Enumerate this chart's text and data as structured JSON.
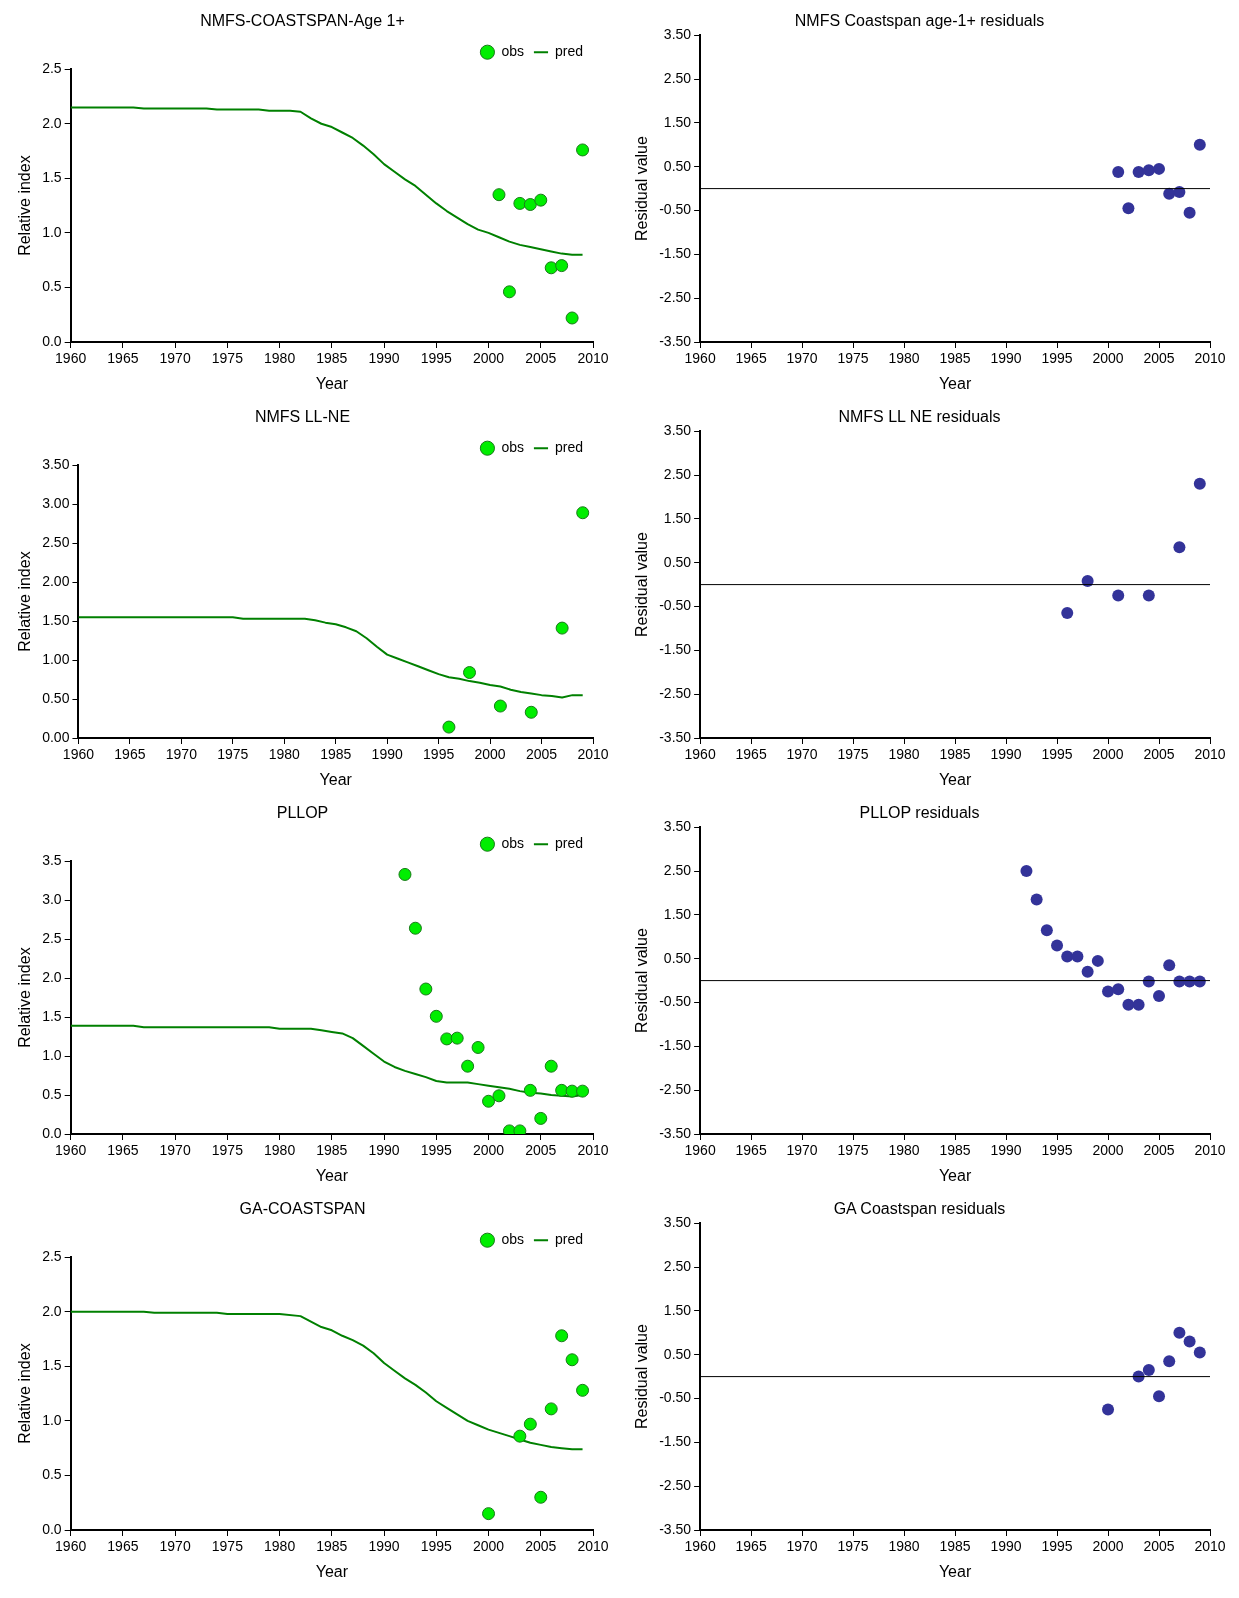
{
  "chart_data": [
    {
      "type": "line",
      "title": "NMFS-COASTSPAN-Age 1+",
      "xlabel": "Year",
      "ylabel": "Relative index",
      "legend": "top right",
      "marker": "circle",
      "line_style": "solid",
      "grid": false,
      "xlim": [
        1960,
        2010
      ],
      "xticks": [
        1960,
        1965,
        1970,
        1975,
        1980,
        1985,
        1990,
        1995,
        2000,
        2005,
        2010
      ],
      "ylim": [
        0,
        2.5
      ],
      "yticks": [
        {
          "value": 0,
          "label": "0.0"
        },
        {
          "value": 0.5,
          "label": "0.5"
        },
        {
          "value": 1,
          "label": "1.0"
        },
        {
          "value": 1.5,
          "label": "1.5"
        },
        {
          "value": 2,
          "label": "2.0"
        },
        {
          "value": 2.5,
          "label": "2.5"
        }
      ],
      "series": [
        {
          "name": "obs",
          "type": "scatter",
          "color": "#00ee00",
          "x": [
            2001,
            2002,
            2003,
            2004,
            2005,
            2006,
            2007,
            2008,
            2009
          ],
          "values": [
            1.35,
            0.46,
            1.27,
            1.26,
            1.3,
            0.68,
            0.7,
            0.22,
            1.76
          ]
        },
        {
          "name": "pred",
          "marker": "none",
          "color": "#008000",
          "x": [
            1960,
            1966,
            1967,
            1973,
            1974,
            1978,
            1979,
            1981,
            1982,
            1983,
            1984,
            1985,
            1986,
            1987,
            1988,
            1989,
            1990,
            1991,
            1992,
            1993,
            1994,
            1995,
            1996,
            1997,
            1998,
            1999,
            2000,
            2001,
            2002,
            2003,
            2004,
            2005,
            2006,
            2007,
            2008,
            2009
          ],
          "values": [
            2.15,
            2.15,
            2.14,
            2.14,
            2.13,
            2.13,
            2.12,
            2.12,
            2.11,
            2.05,
            2.0,
            1.97,
            1.92,
            1.87,
            1.8,
            1.72,
            1.63,
            1.56,
            1.49,
            1.43,
            1.35,
            1.27,
            1.2,
            1.14,
            1.08,
            1.03,
            1.0,
            0.96,
            0.92,
            0.89,
            0.87,
            0.85,
            0.83,
            0.81,
            0.8,
            0.8
          ]
        }
      ]
    },
    {
      "type": "scatter",
      "title": "NMFS Coastspan age-1+ residuals",
      "xlabel": "Year",
      "ylabel": "Residual value",
      "legend": false,
      "marker": "circle",
      "grid": false,
      "xlim": [
        1960,
        2010
      ],
      "xticks": [
        1960,
        1965,
        1970,
        1975,
        1980,
        1985,
        1990,
        1995,
        2000,
        2005,
        2010
      ],
      "ylim": [
        -3.5,
        3.5
      ],
      "yticks": [
        {
          "value": -3.5,
          "label": "-3.50"
        },
        {
          "value": -2.5,
          "label": "-2.50"
        },
        {
          "value": -1.5,
          "label": "-1.50"
        },
        {
          "value": -0.5,
          "label": "-0.50"
        },
        {
          "value": 0.5,
          "label": "0.50"
        },
        {
          "value": 1.5,
          "label": "1.50"
        },
        {
          "value": 2.5,
          "label": "2.50"
        },
        {
          "value": 3.5,
          "label": "3.50"
        }
      ],
      "ref_lines": [
        {
          "axis": "y",
          "value": 0,
          "color": "#000000"
        }
      ],
      "series": [
        {
          "color": "#333399",
          "x": [
            2001,
            2002,
            2003,
            2004,
            2005,
            2006,
            2007,
            2008,
            2009
          ],
          "values": [
            0.38,
            -0.45,
            0.38,
            0.42,
            0.45,
            -0.12,
            -0.08,
            -0.55,
            1.0
          ]
        }
      ]
    },
    {
      "type": "line",
      "title": "NMFS LL-NE",
      "xlabel": "Year",
      "ylabel": "Relative index",
      "legend": "top right",
      "marker": "circle",
      "line_style": "solid",
      "grid": false,
      "xlim": [
        1960,
        2010
      ],
      "xticks": [
        1960,
        1965,
        1970,
        1975,
        1980,
        1985,
        1990,
        1995,
        2000,
        2005,
        2010
      ],
      "ylim": [
        0,
        3.5
      ],
      "yticks": [
        {
          "value": 0,
          "label": "0.00"
        },
        {
          "value": 0.5,
          "label": "0.50"
        },
        {
          "value": 1,
          "label": "1.00"
        },
        {
          "value": 1.5,
          "label": "1.50"
        },
        {
          "value": 2,
          "label": "2.00"
        },
        {
          "value": 2.5,
          "label": "2.50"
        },
        {
          "value": 3,
          "label": "3.00"
        },
        {
          "value": 3.5,
          "label": "3.50"
        }
      ],
      "series": [
        {
          "name": "obs",
          "type": "scatter",
          "color": "#00ee00",
          "x": [
            1996,
            1998,
            2001,
            2004,
            2007,
            2009
          ],
          "values": [
            0.14,
            0.84,
            0.41,
            0.33,
            1.41,
            2.89
          ]
        },
        {
          "name": "pred",
          "marker": "none",
          "color": "#008000",
          "x": [
            1960,
            1975,
            1976,
            1982,
            1983,
            1984,
            1985,
            1986,
            1987,
            1988,
            1989,
            1990,
            1991,
            1992,
            1993,
            1994,
            1995,
            1996,
            1997,
            1998,
            1999,
            2000,
            2001,
            2002,
            2003,
            2004,
            2005,
            2006,
            2007,
            2008,
            2009
          ],
          "values": [
            1.55,
            1.55,
            1.53,
            1.53,
            1.51,
            1.48,
            1.46,
            1.42,
            1.37,
            1.28,
            1.17,
            1.07,
            1.02,
            0.97,
            0.92,
            0.87,
            0.82,
            0.78,
            0.76,
            0.73,
            0.71,
            0.68,
            0.66,
            0.62,
            0.59,
            0.57,
            0.55,
            0.54,
            0.52,
            0.55,
            0.55
          ]
        }
      ]
    },
    {
      "type": "scatter",
      "title": "NMFS LL NE residuals",
      "xlabel": "Year",
      "ylabel": "Residual value",
      "legend": false,
      "marker": "circle",
      "grid": false,
      "xlim": [
        1960,
        2010
      ],
      "xticks": [
        1960,
        1965,
        1970,
        1975,
        1980,
        1985,
        1990,
        1995,
        2000,
        2005,
        2010
      ],
      "ylim": [
        -3.5,
        3.5
      ],
      "yticks": [
        {
          "value": -3.5,
          "label": "-3.50"
        },
        {
          "value": -2.5,
          "label": "-2.50"
        },
        {
          "value": -1.5,
          "label": "-1.50"
        },
        {
          "value": -0.5,
          "label": "-0.50"
        },
        {
          "value": 0.5,
          "label": "0.50"
        },
        {
          "value": 1.5,
          "label": "1.50"
        },
        {
          "value": 2.5,
          "label": "2.50"
        },
        {
          "value": 3.5,
          "label": "3.50"
        }
      ],
      "ref_lines": [
        {
          "axis": "y",
          "value": 0,
          "color": "#000000"
        }
      ],
      "series": [
        {
          "color": "#333399",
          "x": [
            1996,
            1998,
            2001,
            2004,
            2007,
            2009
          ],
          "values": [
            -0.65,
            0.08,
            -0.25,
            -0.25,
            0.85,
            2.3
          ]
        }
      ]
    },
    {
      "type": "line",
      "title": "PLLOP",
      "xlabel": "Year",
      "ylabel": "Relative index",
      "legend": "top right",
      "marker": "circle",
      "line_style": "solid",
      "grid": false,
      "xlim": [
        1960,
        2010
      ],
      "xticks": [
        1960,
        1965,
        1970,
        1975,
        1980,
        1985,
        1990,
        1995,
        2000,
        2005,
        2010
      ],
      "ylim": [
        0,
        3.5
      ],
      "yticks": [
        {
          "value": 0,
          "label": "0.0"
        },
        {
          "value": 0.5,
          "label": "0.5"
        },
        {
          "value": 1,
          "label": "1.0"
        },
        {
          "value": 1.5,
          "label": "1.5"
        },
        {
          "value": 2,
          "label": "2.0"
        },
        {
          "value": 2.5,
          "label": "2.5"
        },
        {
          "value": 3,
          "label": "3.0"
        },
        {
          "value": 3.5,
          "label": "3.5"
        }
      ],
      "series": [
        {
          "name": "obs",
          "type": "scatter",
          "color": "#00ee00",
          "x": [
            1992,
            1993,
            1994,
            1995,
            1996,
            1997,
            1998,
            1999,
            2000,
            2001,
            2002,
            2003,
            2004,
            2005,
            2006,
            2007,
            2008,
            2009
          ],
          "values": [
            3.33,
            2.64,
            1.86,
            1.51,
            1.22,
            1.23,
            0.87,
            1.11,
            0.42,
            0.49,
            0.04,
            0.04,
            0.56,
            0.2,
            0.87,
            0.56,
            0.55,
            0.55
          ]
        },
        {
          "name": "pred",
          "marker": "none",
          "color": "#008000",
          "x": [
            1960,
            1966,
            1967,
            1979,
            1980,
            1983,
            1984,
            1985,
            1986,
            1987,
            1988,
            1989,
            1990,
            1991,
            1992,
            1993,
            1994,
            1995,
            1996,
            1998,
            1999,
            2000,
            2001,
            2002,
            2003,
            2004,
            2005,
            2006,
            2007,
            2008,
            2009
          ],
          "values": [
            1.39,
            1.39,
            1.37,
            1.37,
            1.35,
            1.35,
            1.33,
            1.31,
            1.29,
            1.23,
            1.13,
            1.03,
            0.93,
            0.86,
            0.81,
            0.77,
            0.73,
            0.68,
            0.66,
            0.66,
            0.64,
            0.62,
            0.6,
            0.58,
            0.55,
            0.53,
            0.52,
            0.5,
            0.49,
            0.48,
            0.5
          ]
        }
      ]
    },
    {
      "type": "scatter",
      "title": "PLLOP residuals",
      "xlabel": "Year",
      "ylabel": "Residual value",
      "legend": false,
      "marker": "circle",
      "grid": false,
      "xlim": [
        1960,
        2010
      ],
      "xticks": [
        1960,
        1965,
        1970,
        1975,
        1980,
        1985,
        1990,
        1995,
        2000,
        2005,
        2010
      ],
      "ylim": [
        -3.5,
        3.5
      ],
      "yticks": [
        {
          "value": -3.5,
          "label": "-3.50"
        },
        {
          "value": -2.5,
          "label": "-2.50"
        },
        {
          "value": -1.5,
          "label": "-1.50"
        },
        {
          "value": -0.5,
          "label": "-0.50"
        },
        {
          "value": 0.5,
          "label": "0.50"
        },
        {
          "value": 1.5,
          "label": "1.50"
        },
        {
          "value": 2.5,
          "label": "2.50"
        },
        {
          "value": 3.5,
          "label": "3.50"
        }
      ],
      "ref_lines": [
        {
          "axis": "y",
          "value": 0,
          "color": "#000000"
        }
      ],
      "series": [
        {
          "color": "#333399",
          "x": [
            1992,
            1993,
            1994,
            1995,
            1996,
            1997,
            1998,
            1999,
            2000,
            2001,
            2002,
            2003,
            2004,
            2005,
            2006,
            2007,
            2008,
            2009
          ],
          "values": [
            2.5,
            1.85,
            1.15,
            0.8,
            0.55,
            0.55,
            0.2,
            0.45,
            -0.25,
            -0.2,
            -0.55,
            -0.55,
            -0.02,
            -0.35,
            0.35,
            -0.02,
            -0.02,
            -0.02
          ]
        }
      ]
    },
    {
      "type": "line",
      "title": "GA-COASTSPAN",
      "xlabel": "Year",
      "ylabel": "Relative index",
      "legend": "top right",
      "marker": "circle",
      "line_style": "solid",
      "grid": false,
      "xlim": [
        1960,
        2010
      ],
      "xticks": [
        1960,
        1965,
        1970,
        1975,
        1980,
        1985,
        1990,
        1995,
        2000,
        2005,
        2010
      ],
      "ylim": [
        0,
        2.5
      ],
      "yticks": [
        {
          "value": 0,
          "label": "0.0"
        },
        {
          "value": 0.5,
          "label": "0.5"
        },
        {
          "value": 1,
          "label": "1.0"
        },
        {
          "value": 1.5,
          "label": "1.5"
        },
        {
          "value": 2,
          "label": "2.0"
        },
        {
          "value": 2.5,
          "label": "2.5"
        }
      ],
      "series": [
        {
          "name": "obs",
          "type": "scatter",
          "color": "#00ee00",
          "x": [
            2000,
            2003,
            2004,
            2005,
            2006,
            2007,
            2008,
            2009
          ],
          "values": [
            0.15,
            0.86,
            0.97,
            0.3,
            1.11,
            1.78,
            1.56,
            1.28
          ]
        },
        {
          "name": "pred",
          "marker": "none",
          "color": "#008000",
          "x": [
            1960,
            1967,
            1968,
            1974,
            1975,
            1980,
            1982,
            1983,
            1984,
            1985,
            1986,
            1987,
            1988,
            1989,
            1990,
            1991,
            1992,
            1993,
            1994,
            1995,
            1996,
            1997,
            1998,
            1999,
            2000,
            2001,
            2002,
            2003,
            2004,
            2005,
            2006,
            2007,
            2008,
            2009
          ],
          "values": [
            2.0,
            2.0,
            1.99,
            1.99,
            1.98,
            1.98,
            1.96,
            1.91,
            1.86,
            1.83,
            1.78,
            1.74,
            1.69,
            1.62,
            1.53,
            1.46,
            1.39,
            1.33,
            1.26,
            1.18,
            1.12,
            1.06,
            1.0,
            0.96,
            0.92,
            0.89,
            0.86,
            0.83,
            0.8,
            0.78,
            0.76,
            0.75,
            0.74,
            0.74
          ]
        }
      ]
    },
    {
      "type": "scatter",
      "title": "GA Coastspan residuals",
      "xlabel": "Year",
      "ylabel": "Residual value",
      "legend": false,
      "marker": "circle",
      "grid": false,
      "xlim": [
        1960,
        2010
      ],
      "xticks": [
        1960,
        1965,
        1970,
        1975,
        1980,
        1985,
        1990,
        1995,
        2000,
        2005,
        2010
      ],
      "ylim": [
        -3.5,
        3.5
      ],
      "yticks": [
        {
          "value": -3.5,
          "label": "-3.50"
        },
        {
          "value": -2.5,
          "label": "-2.50"
        },
        {
          "value": -1.5,
          "label": "-1.50"
        },
        {
          "value": -0.5,
          "label": "-0.50"
        },
        {
          "value": 0.5,
          "label": "0.50"
        },
        {
          "value": 1.5,
          "label": "1.50"
        },
        {
          "value": 2.5,
          "label": "2.50"
        },
        {
          "value": 3.5,
          "label": "3.50"
        }
      ],
      "ref_lines": [
        {
          "axis": "y",
          "value": 0,
          "color": "#000000"
        }
      ],
      "series": [
        {
          "color": "#333399",
          "x": [
            2000,
            2003,
            2004,
            2005,
            2006,
            2007,
            2008,
            2009
          ],
          "values": [
            -0.75,
            0.0,
            0.15,
            -0.45,
            0.35,
            1.0,
            0.8,
            0.55
          ]
        }
      ]
    }
  ]
}
